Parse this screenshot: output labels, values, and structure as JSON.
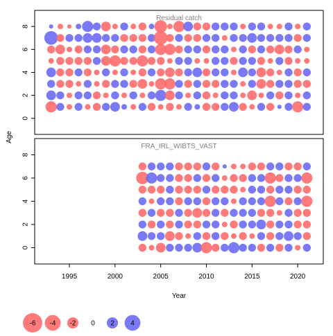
{
  "chart_data": {
    "type": "scatter",
    "xlabel": "Year",
    "ylabel": "Age",
    "xticks": [
      1995,
      2000,
      2005,
      2010,
      2015,
      2020
    ],
    "xlim": [
      1991.2,
      2022.8
    ],
    "colors": {
      "positive": "#6b6bf5",
      "negative": "#ff6b6b"
    },
    "legend": {
      "placement": "bottom-left",
      "values": [
        -6,
        -4,
        -2,
        0,
        2,
        4
      ],
      "labels": [
        "-6",
        "-4",
        "-2",
        "0",
        "2",
        "4"
      ]
    },
    "panels": [
      {
        "title": "Residual catch",
        "ylim": [
          -1.4,
          9.4
        ],
        "yticks": [
          0,
          2,
          4,
          6,
          8
        ],
        "years": [
          1993,
          1994,
          1995,
          1996,
          1997,
          1998,
          1999,
          2000,
          2001,
          2002,
          2003,
          2004,
          2005,
          2006,
          2007,
          2008,
          2009,
          2010,
          2011,
          2012,
          2013,
          2014,
          2015,
          2016,
          2017,
          2018,
          2019,
          2020,
          2021
        ],
        "ages": [
          1,
          2,
          3,
          4,
          5,
          6,
          7,
          8
        ],
        "residuals": [
          [
            -2,
            1,
            -0.5,
            1,
            -0.5,
            -1,
            1,
            1.5,
            0.5,
            -0.5,
            1,
            -1,
            -0.5,
            -1,
            -0.5,
            1,
            0.5,
            -1,
            -1,
            1,
            1.5,
            -1,
            -0.5,
            1,
            -1,
            0.3,
            1,
            -2,
            1
          ],
          [
            1.5,
            1,
            -0.5,
            1,
            1,
            -1,
            -0.5,
            1,
            -0.5,
            1,
            -0.5,
            1,
            2,
            -1.5,
            1,
            -0.5,
            1,
            -1,
            -0.5,
            1,
            1,
            -0.5,
            -1.5,
            -0.5,
            1,
            -1,
            1,
            -0.5,
            1
          ],
          [
            1,
            -1,
            -1,
            -0.5,
            1,
            -0.5,
            -1,
            1,
            1,
            -1,
            -1.5,
            -0.5,
            -2,
            -2,
            1,
            -1,
            1,
            -1,
            -1,
            1,
            1,
            -0.5,
            1,
            -1.5,
            -1,
            1,
            1,
            -1,
            -1
          ],
          [
            1.5,
            -1,
            -1,
            1,
            -1,
            -0.5,
            1,
            -0.5,
            1,
            -0.5,
            -1,
            1,
            -1,
            -1.5,
            -1,
            1,
            1.5,
            -1,
            1,
            1,
            -0.5,
            1.5,
            1,
            -1.5,
            -1,
            -0.5,
            1,
            -1,
            1
          ],
          [
            -0.5,
            -1,
            -1,
            -1,
            -1,
            1,
            -1.5,
            -2,
            -1,
            -1,
            -2,
            -1,
            -1,
            -0.5,
            1,
            1,
            -0.5,
            -0.5,
            1,
            1,
            -1,
            1,
            1,
            -1,
            -0.5,
            1,
            -1,
            -0.5,
            -0.5
          ],
          [
            -1,
            -1.5,
            -0.5,
            -1,
            1,
            1,
            -1.5,
            -1,
            1,
            1,
            -1,
            1,
            -2,
            -2,
            -1,
            1,
            1,
            -1,
            1,
            1,
            -0.5,
            1,
            -1,
            1,
            -1,
            -1.5,
            -1,
            1,
            -0.5
          ],
          [
            3,
            -1,
            1,
            1,
            1.5,
            1.5,
            1,
            1,
            -1,
            -1,
            -1,
            1,
            -3,
            -1,
            1,
            -1,
            -1,
            1,
            1,
            -0.5,
            1,
            1,
            1.5,
            1,
            1,
            1,
            1,
            -1,
            1
          ],
          [
            0.3,
            -0.5,
            -0.3,
            0.5,
            2,
            1,
            -1.5,
            -0.5,
            1,
            -0.5,
            -1,
            0.5,
            -2.5,
            -0.5,
            -2,
            1.5,
            -1,
            -1,
            1,
            1,
            1,
            -0.5,
            1,
            1,
            -0.5,
            -0.5,
            1,
            -0.5,
            1
          ]
        ]
      },
      {
        "title": "FRA_IRL_WIBTS_VAST",
        "ylim": [
          -1.4,
          9.4
        ],
        "yticks": [
          0,
          2,
          4,
          6,
          8
        ],
        "years": [
          2003,
          2004,
          2005,
          2006,
          2007,
          2008,
          2009,
          2010,
          2011,
          2012,
          2013,
          2014,
          2015,
          2016,
          2017,
          2018,
          2019,
          2020,
          2021
        ],
        "ages": [
          0,
          1,
          2,
          3,
          4,
          5,
          6,
          7
        ],
        "residuals": [
          [
            -1,
            -0.5,
            -1.5,
            1,
            1,
            1,
            1.5,
            -2,
            -1,
            1,
            2,
            1,
            1,
            -1,
            1,
            -1,
            1,
            -0.5,
            1
          ],
          [
            1.5,
            1,
            1,
            -1.5,
            -1,
            -0.5,
            1,
            -1,
            1,
            -1,
            -0.5,
            -1,
            -0.5,
            1,
            -1,
            1,
            1.5,
            1,
            -1
          ],
          [
            1,
            -1,
            1,
            -1,
            1,
            -1,
            -1,
            1,
            1,
            -0.5,
            -1,
            1,
            1,
            1.5,
            -1,
            1,
            1,
            -1,
            -1
          ],
          [
            -1,
            1,
            -1,
            -1,
            1,
            -1,
            -1.5,
            -1,
            1,
            -1,
            1,
            1,
            1,
            -1,
            -1,
            -0.5,
            1,
            -1,
            -1
          ],
          [
            1,
            -0.5,
            1,
            1,
            -1,
            1,
            1,
            -1,
            1,
            1,
            -0.5,
            1,
            1,
            1,
            -2,
            1,
            -1,
            1,
            -2
          ],
          [
            -1,
            -1,
            -1,
            1,
            -1,
            -1,
            -1,
            1,
            -1,
            -1,
            -1,
            -0.5,
            1,
            1,
            -1,
            1,
            1,
            -1,
            -1
          ],
          [
            -2.5,
            2,
            1,
            1,
            -1,
            -1,
            1,
            -1,
            1,
            -0.5,
            -1,
            -1,
            1,
            1,
            -2,
            -1,
            1,
            1,
            -2
          ],
          [
            -1,
            1,
            1,
            1,
            -1,
            -1,
            -1,
            1,
            -1,
            0.3,
            -0.5,
            -0.5,
            -1,
            -1,
            1,
            1,
            -1,
            -1,
            1
          ]
        ]
      }
    ]
  }
}
